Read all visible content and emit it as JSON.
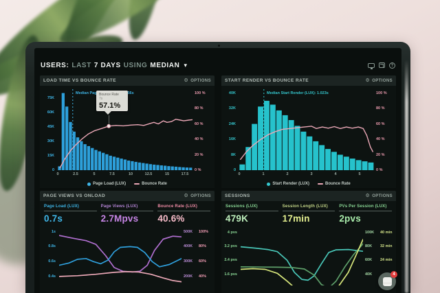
{
  "header": {
    "prefix": "USERS:",
    "range_word": "LAST",
    "range_value": "7 DAYS",
    "agg_word": "USING",
    "agg_value": "MEDIAN"
  },
  "icons": {
    "gear": "⚙",
    "chevron_down": "▾",
    "help_glyph": "?"
  },
  "panels": {
    "load_time": {
      "title": "LOAD TIME VS BOUNCE RATE",
      "options": "OPTIONS"
    },
    "start_render": {
      "title": "START RENDER VS BOUNCE RATE",
      "options": "OPTIONS"
    },
    "page_views": {
      "title": "PAGE VIEWS VS ONLOAD",
      "options": "OPTIONS",
      "metrics": [
        {
          "label": "Page Load (LUX)",
          "value": "0.7s",
          "color": "#3fb6e8"
        },
        {
          "label": "Page Views (LUX)",
          "value": "2.7Mpvs",
          "color": "#c584e4"
        },
        {
          "label": "Bounce Rate (LUX)",
          "value": "40.6%",
          "color": "#f7bcc9"
        }
      ]
    },
    "sessions": {
      "title": "SESSIONS",
      "options": "OPTIONS",
      "metrics": [
        {
          "label": "Sessions (LUX)",
          "value": "479K",
          "color": "#bdeebb"
        },
        {
          "label": "Session Length (LUX)",
          "value": "17min",
          "color": "#e2ee8f"
        },
        {
          "label": "PVs Per Session (LUX)",
          "value": "2pvs",
          "color": "#a9ecab"
        }
      ]
    }
  },
  "annotations": {
    "load_time_median": "Median Page Load (LUX): 2.056s",
    "start_render_median": "Median Start Render (LUX): 1.023s"
  },
  "tooltip": {
    "title": "Bounce Rate",
    "sub": "7s",
    "value": "57.1%"
  },
  "floating_button": {
    "badge": "4"
  },
  "chart_data": [
    {
      "id": "load_time",
      "type": "bar",
      "title": "LOAD TIME VS BOUNCE RATE",
      "x_range": [
        0,
        18.5
      ],
      "x_ticks": [
        {
          "v": 0,
          "l": "0"
        },
        {
          "v": 2.5,
          "l": "2.5"
        },
        {
          "v": 5,
          "l": "5"
        },
        {
          "v": 7.5,
          "l": "7.5"
        },
        {
          "v": 10,
          "l": "10"
        },
        {
          "v": 12.5,
          "l": "12.5"
        },
        {
          "v": 15,
          "l": "15"
        },
        {
          "v": 17.5,
          "l": "17.5"
        }
      ],
      "left_range": [
        0,
        84
      ],
      "left_color": "#3fb6e8",
      "left_ticks": [
        {
          "v": 75,
          "l": "75K"
        },
        {
          "v": 60,
          "l": "60K"
        },
        {
          "v": 45,
          "l": "45K"
        },
        {
          "v": 30,
          "l": "30K"
        },
        {
          "v": 15,
          "l": "15K"
        },
        {
          "v": 0,
          "l": "0"
        }
      ],
      "right_range": [
        0,
        105
      ],
      "right_color": "#ef9db1",
      "right_ticks": [
        {
          "v": 100,
          "l": "100 %"
        },
        {
          "v": 80,
          "l": "80 %"
        },
        {
          "v": 60,
          "l": "60 %"
        },
        {
          "v": 40,
          "l": "40 %"
        },
        {
          "v": 20,
          "l": "20 %"
        },
        {
          "v": 0,
          "l": "0 %"
        }
      ],
      "bar_color": "#2d9fda",
      "bin_width": 0.5,
      "bars": [
        4,
        80,
        66,
        50,
        40,
        34,
        30,
        27,
        25,
        23,
        21,
        19.5,
        18,
        16.5,
        15,
        14,
        13,
        12,
        11,
        10,
        9.3,
        8.6,
        8,
        7.4,
        6.8,
        6.3,
        5.8,
        5.4,
        5,
        4.6,
        4.2,
        3.9,
        3.6,
        3.3,
        3,
        2.8,
        2.6
      ],
      "median": {
        "v": 2.056,
        "color": "#3fb6e8"
      },
      "series": [
        {
          "name": "Bounce Rate",
          "axis": "right",
          "color": "#eba8b7",
          "width": 1.4,
          "points": [
            [
              0.3,
              3
            ],
            [
              1,
              15
            ],
            [
              1.8,
              26
            ],
            [
              2.6,
              34
            ],
            [
              3.4,
              41
            ],
            [
              4.2,
              47
            ],
            [
              5,
              51
            ],
            [
              6,
              54
            ],
            [
              7,
              57.1
            ],
            [
              8,
              58
            ],
            [
              9,
              57.5
            ],
            [
              10,
              58.5
            ],
            [
              11,
              59
            ],
            [
              11.8,
              58
            ],
            [
              12.5,
              60
            ],
            [
              13.2,
              62
            ],
            [
              13.8,
              60
            ],
            [
              14.5,
              64
            ],
            [
              15,
              62
            ],
            [
              15.6,
              63
            ],
            [
              16.2,
              66
            ],
            [
              16.8,
              65
            ],
            [
              17.3,
              64
            ],
            [
              18,
              65
            ],
            [
              18.5,
              65.5
            ]
          ]
        }
      ],
      "marker": {
        "x": 7,
        "y": 57.1,
        "stroke": "#e999ac"
      },
      "legend": [
        {
          "swatch": "dot",
          "color": "#3fb6e8",
          "label": "Page Load (LUX)"
        },
        {
          "swatch": "line",
          "color": "#eba8b7",
          "label": "Bounce Rate"
        }
      ]
    },
    {
      "id": "start_render",
      "type": "bar",
      "title": "START RENDER VS BOUNCE RATE",
      "x_range": [
        0,
        5.6
      ],
      "x_ticks": [
        {
          "v": 0,
          "l": "0"
        },
        {
          "v": 1,
          "l": "1"
        },
        {
          "v": 2,
          "l": "2"
        },
        {
          "v": 3,
          "l": "3"
        },
        {
          "v": 4,
          "l": "4"
        },
        {
          "v": 5,
          "l": "5"
        }
      ],
      "left_range": [
        0,
        42
      ],
      "left_color": "#35c8cf",
      "left_ticks": [
        {
          "v": 40,
          "l": "40K"
        },
        {
          "v": 32,
          "l": "32K"
        },
        {
          "v": 24,
          "l": "24K"
        },
        {
          "v": 16,
          "l": "16K"
        },
        {
          "v": 8,
          "l": "8K"
        },
        {
          "v": 0,
          "l": "0"
        }
      ],
      "right_range": [
        0,
        105
      ],
      "right_color": "#ef9db1",
      "right_ticks": [
        {
          "v": 100,
          "l": "100 %"
        },
        {
          "v": 80,
          "l": "80 %"
        },
        {
          "v": 60,
          "l": "60 %"
        },
        {
          "v": 40,
          "l": "40 %"
        },
        {
          "v": 20,
          "l": "20 %"
        },
        {
          "v": 0,
          "l": "0 %"
        }
      ],
      "bar_color": "#26c2cc",
      "bin_width": 0.25,
      "bars": [
        3,
        12,
        24,
        33,
        36,
        34,
        31,
        28.5,
        26,
        23,
        20,
        17.5,
        15,
        13,
        11,
        9.5,
        8,
        7,
        6,
        5.2,
        4.6,
        4
      ],
      "median": {
        "v": 1.023,
        "color": "#35c8cf"
      },
      "series": [
        {
          "name": "Bounce Rate",
          "axis": "right",
          "color": "#eba8b7",
          "width": 1.4,
          "points": [
            [
              0.05,
              14
            ],
            [
              0.3,
              24
            ],
            [
              0.6,
              33
            ],
            [
              0.9,
              40
            ],
            [
              1.2,
              46
            ],
            [
              1.5,
              50
            ],
            [
              1.8,
              53
            ],
            [
              2.1,
              54
            ],
            [
              2.4,
              55
            ],
            [
              2.7,
              56
            ],
            [
              3,
              57
            ],
            [
              3.2,
              54
            ],
            [
              3.45,
              56
            ],
            [
              3.7,
              54.5
            ],
            [
              3.95,
              56.5
            ],
            [
              4.2,
              54
            ],
            [
              4.45,
              56
            ],
            [
              4.7,
              54.5
            ],
            [
              4.95,
              56
            ],
            [
              5.15,
              54
            ],
            [
              5.3,
              45
            ],
            [
              5.45,
              30
            ],
            [
              5.55,
              24
            ]
          ]
        }
      ],
      "legend": [
        {
          "swatch": "dot",
          "color": "#35c8cf",
          "label": "Start Render (LUX)"
        },
        {
          "swatch": "line",
          "color": "#eba8b7",
          "label": "Bounce Rate"
        }
      ]
    },
    {
      "id": "page_views",
      "type": "line",
      "title": "PAGE VIEWS VS ONLOAD",
      "x_range": [
        0,
        1
      ],
      "left_range": [
        0.28,
        1.07
      ],
      "left_color": "#3fb6e8",
      "left_ticks": [
        {
          "v": 1,
          "l": "1s"
        },
        {
          "v": 0.8,
          "l": "0.8s"
        },
        {
          "v": 0.6,
          "l": "0.6s"
        },
        {
          "v": 0.4,
          "l": "0.4s"
        }
      ],
      "right_colors": [
        "#bd8fd9",
        "#f29db5"
      ],
      "right_ticks": [
        {
          "v": 1,
          "l1": "500K",
          "l2": "100%"
        },
        {
          "v": 0.8,
          "l1": "400K",
          "l2": "80%"
        },
        {
          "v": 0.6,
          "l1": "300K",
          "l2": "60%"
        },
        {
          "v": 0.4,
          "l1": "200K",
          "l2": "40%"
        }
      ],
      "series": [
        {
          "name": "Page Views",
          "color": "#b06fd0",
          "width": 1.7,
          "points": [
            [
              0,
              0.95
            ],
            [
              0.12,
              0.91
            ],
            [
              0.22,
              0.88
            ],
            [
              0.3,
              0.83
            ],
            [
              0.38,
              0.68
            ],
            [
              0.45,
              0.52
            ],
            [
              0.52,
              0.47
            ],
            [
              0.6,
              0.46
            ],
            [
              0.66,
              0.47
            ],
            [
              0.72,
              0.55
            ],
            [
              0.78,
              0.75
            ],
            [
              0.85,
              0.9
            ],
            [
              0.93,
              0.94
            ],
            [
              1,
              0.93
            ]
          ]
        },
        {
          "name": "Page Load",
          "color": "#2f9fdc",
          "width": 1.7,
          "points": [
            [
              0,
              0.55
            ],
            [
              0.08,
              0.58
            ],
            [
              0.15,
              0.63
            ],
            [
              0.22,
              0.64
            ],
            [
              0.28,
              0.6
            ],
            [
              0.34,
              0.57
            ],
            [
              0.4,
              0.62
            ],
            [
              0.45,
              0.73
            ],
            [
              0.5,
              0.79
            ],
            [
              0.58,
              0.8
            ],
            [
              0.64,
              0.79
            ],
            [
              0.7,
              0.72
            ],
            [
              0.76,
              0.6
            ],
            [
              0.82,
              0.53
            ],
            [
              0.9,
              0.56
            ],
            [
              1,
              0.64
            ]
          ]
        },
        {
          "name": "Bounce Rate",
          "color": "#eba8b7",
          "width": 1.7,
          "points": [
            [
              0,
              0.4
            ],
            [
              0.15,
              0.41
            ],
            [
              0.3,
              0.43
            ],
            [
              0.45,
              0.455
            ],
            [
              0.55,
              0.465
            ],
            [
              0.65,
              0.46
            ],
            [
              0.75,
              0.43
            ],
            [
              0.85,
              0.38
            ],
            [
              0.93,
              0.345
            ],
            [
              1,
              0.33
            ]
          ]
        }
      ]
    },
    {
      "id": "sessions",
      "type": "line",
      "title": "SESSIONS",
      "x_range": [
        0,
        1
      ],
      "left_range": [
        0.95,
        4.35
      ],
      "left_color": "#8ad795",
      "left_ticks": [
        {
          "v": 4,
          "l": "4 pvs"
        },
        {
          "v": 3.2,
          "l": "3.2 pvs"
        },
        {
          "v": 2.4,
          "l": "2.4 pvs"
        },
        {
          "v": 1.6,
          "l": "1.6 pvs"
        }
      ],
      "right_colors": [
        "#a8dca8",
        "#d4e58a"
      ],
      "right_ticks": [
        {
          "v": 4,
          "l1": "100K",
          "l2": "40 min"
        },
        {
          "v": 3.2,
          "l1": "80K",
          "l2": "32 min"
        },
        {
          "v": 2.4,
          "l1": "60K",
          "l2": "24 min"
        },
        {
          "v": 1.6,
          "l1": "40K",
          "l2": ""
        }
      ],
      "series": [
        {
          "name": "Sessions",
          "color": "#49c7b8",
          "width": 1.7,
          "points": [
            [
              0,
              3.18
            ],
            [
              0.12,
              3.1
            ],
            [
              0.22,
              3.02
            ],
            [
              0.3,
              2.9
            ],
            [
              0.38,
              2.4
            ],
            [
              0.44,
              1.7
            ],
            [
              0.5,
              1.3
            ],
            [
              0.55,
              1.25
            ],
            [
              0.6,
              1.5
            ],
            [
              0.66,
              2.2
            ],
            [
              0.72,
              2.85
            ],
            [
              0.78,
              3.0
            ],
            [
              0.88,
              3.02
            ],
            [
              1,
              2.92
            ]
          ]
        },
        {
          "name": "PVs Per Session",
          "color": "#5ea06a",
          "width": 1.7,
          "points": [
            [
              0,
              2.02
            ],
            [
              0.3,
              2.0
            ],
            [
              0.42,
              1.98
            ],
            [
              0.52,
              1.9
            ],
            [
              0.6,
              1.55
            ],
            [
              0.66,
              1.0
            ],
            [
              0.72,
              0.8
            ],
            [
              0.78,
              1.2
            ],
            [
              0.85,
              2.0
            ],
            [
              0.92,
              2.7
            ],
            [
              1,
              3.35
            ]
          ]
        },
        {
          "name": "Session Length",
          "color": "#d8e87c",
          "width": 1.7,
          "points": [
            [
              0,
              1.88
            ],
            [
              0.1,
              1.92
            ],
            [
              0.2,
              1.88
            ],
            [
              0.3,
              1.65
            ],
            [
              0.38,
              1.2
            ],
            [
              0.46,
              0.7
            ],
            [
              0.6,
              0.4
            ],
            [
              0.72,
              0.5
            ],
            [
              0.8,
              0.9
            ],
            [
              0.88,
              1.7
            ],
            [
              0.95,
              2.8
            ],
            [
              1,
              3.6
            ]
          ]
        }
      ]
    }
  ]
}
